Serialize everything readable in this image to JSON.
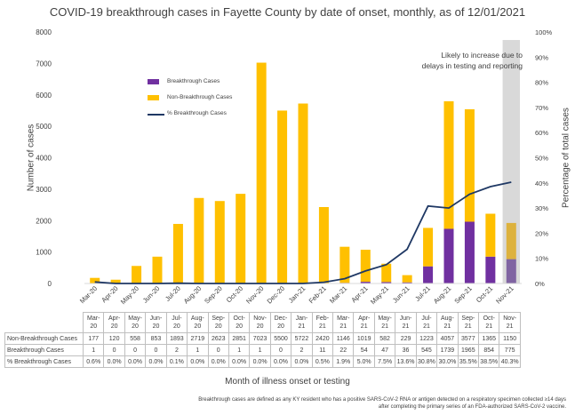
{
  "chart_data": {
    "type": "bar",
    "stacked": true,
    "title": "COVID-19 breakthrough cases in Fayette County by date of onset, monthly, as of 12/01/2021",
    "xlabel": "Month of illness onset or testing",
    "ylabel": "Number of cases",
    "y2label": "Percentage of total cases",
    "ylim": [
      0,
      8000
    ],
    "y2lim": [
      0,
      100
    ],
    "yticks": [
      "0",
      "1000",
      "2000",
      "3000",
      "4000",
      "5000",
      "6000",
      "7000",
      "8000"
    ],
    "y2ticks": [
      "0%",
      "10%",
      "20%",
      "30%",
      "40%",
      "50%",
      "60%",
      "70%",
      "80%",
      "90%",
      "100%"
    ],
    "categories": [
      "Mar-20",
      "Apr-20",
      "May-20",
      "Jun-20",
      "Jul-20",
      "Aug-20",
      "Sep-20",
      "Oct-20",
      "Nov-20",
      "Dec-20",
      "Jan-21",
      "Feb-21",
      "Mar-21",
      "Apr-21",
      "May-21",
      "Jun-21",
      "Jul-21",
      "Aug-21",
      "Sep-21",
      "Oct-21",
      "Nov-21"
    ],
    "table_categories": [
      "Mar-\n20",
      "Apr-\n20",
      "May-\n20",
      "Jun-\n20",
      "Jul-\n20",
      "Aug-\n20",
      "Sep-\n20",
      "Oct-\n20",
      "Nov-\n20",
      "Dec-\n20",
      "Jan-\n21",
      "Feb-\n21",
      "Mar-\n21",
      "Apr-\n21",
      "May-\n21",
      "Jun-\n21",
      "Jul-\n21",
      "Aug-\n21",
      "Sep-\n21",
      "Oct-\n21",
      "Nov-\n21"
    ],
    "series": [
      {
        "name": "Non-Breakthrough Cases",
        "kind": "bar",
        "axis": "left",
        "color": "#FFC000",
        "values": [
          177,
          120,
          558,
          853,
          1893,
          2719,
          2623,
          2851,
          7023,
          5500,
          5722,
          2420,
          1146,
          1019,
          582,
          229,
          1223,
          4057,
          3577,
          1365,
          1150
        ]
      },
      {
        "name": "Breakthrough Cases",
        "kind": "bar",
        "axis": "left",
        "color": "#7030A0",
        "values": [
          1,
          0,
          0,
          0,
          2,
          1,
          0,
          1,
          1,
          0,
          2,
          11,
          22,
          54,
          47,
          36,
          545,
          1739,
          1965,
          854,
          775
        ]
      },
      {
        "name": "% Breakthrough Cases",
        "kind": "line",
        "axis": "right",
        "color": "#1F3864",
        "values": [
          0.6,
          0.0,
          0.0,
          0.0,
          0.1,
          0.0,
          0.0,
          0.0,
          0.0,
          0.0,
          0.0,
          0.5,
          1.9,
          5.0,
          7.5,
          13.6,
          30.8,
          30.0,
          35.5,
          38.5,
          40.3
        ],
        "labels": [
          "0.6%",
          "0.0%",
          "0.0%",
          "0.0%",
          "0.1%",
          "0.0%",
          "0.0%",
          "0.0%",
          "0.0%",
          "0.0%",
          "0.0%",
          "0.5%",
          "1.9%",
          "5.0%",
          "7.5%",
          "13.6%",
          "30.8%",
          "30.0%",
          "35.5%",
          "38.5%",
          "40.3%"
        ]
      }
    ],
    "highlight_category": "Nov-21",
    "annotation": "Likely to increase due to delays in testing and reporting",
    "legend_position": "upper-left, inside plot",
    "grid": false,
    "footnote": "Breakthrough cases are defined as any KY resident who has a positive SARS-CoV-2 RNA or antigen detected on a respiratory specimen collected ≥14 days after completing the primary series of an FDA-authorized SARS-CoV-2 vaccine."
  },
  "colors": {
    "breakthrough": "#7030A0",
    "breakthrough_highlight": "#8064A2",
    "non_breakthrough": "#FFC000",
    "non_breakthrough_highlight": "#DDB23E",
    "percent_line": "#1F3864",
    "highlight_band": "#D9D9D9",
    "axis": "#D9D9D9"
  }
}
